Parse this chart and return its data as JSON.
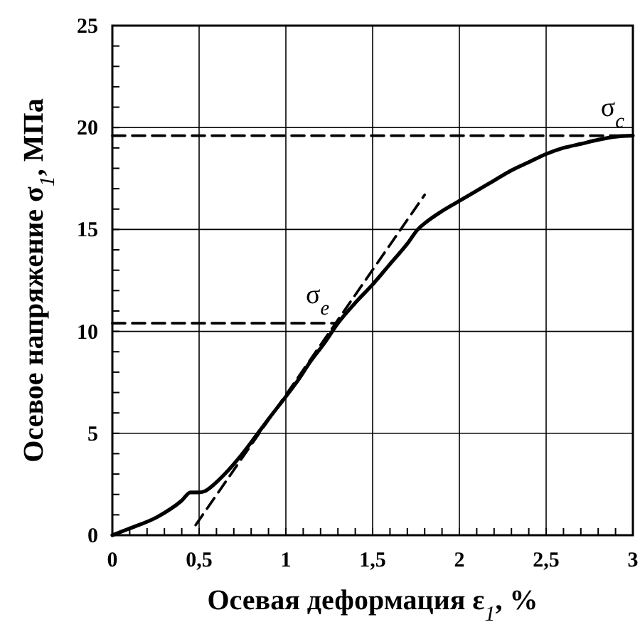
{
  "chart_data": {
    "type": "line",
    "xlabel": "Осевая деформация ε$_{1}$, %",
    "ylabel": "Осевое напряжение σ$_{1}$, МПа",
    "xlim": [
      0,
      3
    ],
    "ylim": [
      0,
      25
    ],
    "xticks": [
      0,
      {
        "value": 0.1,
        "label": null
      },
      {
        "value": 0.2,
        "label": null
      },
      {
        "value": 0.3,
        "label": null
      },
      {
        "value": 0.4,
        "label": null
      },
      {
        "value": 0.5,
        "label": "0,5"
      },
      {
        "value": 0.6,
        "label": null
      },
      {
        "value": 0.7,
        "label": null
      },
      {
        "value": 0.8,
        "label": null
      },
      {
        "value": 0.9,
        "label": null
      },
      1,
      {
        "value": 1.1,
        "label": null
      },
      {
        "value": 1.2,
        "label": null
      },
      {
        "value": 1.3,
        "label": null
      },
      {
        "value": 1.4,
        "label": null
      },
      {
        "value": 1.5,
        "label": "1,5"
      },
      {
        "value": 1.6,
        "label": null
      },
      {
        "value": 1.7,
        "label": null
      },
      {
        "value": 1.8,
        "label": null
      },
      {
        "value": 1.9,
        "label": null
      },
      2,
      {
        "value": 2.1,
        "label": null
      },
      {
        "value": 2.2,
        "label": null
      },
      {
        "value": 2.3,
        "label": null
      },
      {
        "value": 2.4,
        "label": null
      },
      {
        "value": 2.5,
        "label": "2,5"
      },
      {
        "value": 2.6,
        "label": null
      },
      {
        "value": 2.7,
        "label": null
      },
      {
        "value": 2.8,
        "label": null
      },
      {
        "value": 2.9,
        "label": null
      },
      3
    ],
    "yticks": [
      0,
      {
        "value": 1,
        "label": null
      },
      {
        "value": 2,
        "label": null
      },
      {
        "value": 3,
        "label": null
      },
      {
        "value": 4,
        "label": null
      },
      5,
      {
        "value": 6,
        "label": null
      },
      {
        "value": 7,
        "label": null
      },
      {
        "value": 8,
        "label": null
      },
      {
        "value": 9,
        "label": null
      },
      10,
      {
        "value": 11,
        "label": null
      },
      {
        "value": 12,
        "label": null
      },
      {
        "value": 13,
        "label": null
      },
      {
        "value": 14,
        "label": null
      },
      15,
      {
        "value": 16,
        "label": null
      },
      {
        "value": 17,
        "label": null
      },
      {
        "value": 18,
        "label": null
      },
      {
        "value": 19,
        "label": null
      },
      20,
      {
        "value": 21,
        "label": null
      },
      {
        "value": 22,
        "label": null
      },
      {
        "value": 23,
        "label": null
      },
      {
        "value": 24,
        "label": null
      },
      25
    ],
    "grid": true,
    "marker": "none",
    "series": [
      {
        "color": "#000000",
        "line_style": "solid",
        "x": [
          0,
          0.09,
          0.26,
          0.4,
          0.45,
          0.5,
          0.53,
          0.6,
          0.67,
          0.75,
          0.83,
          0.9,
          1.0,
          1.07,
          1.14,
          1.22,
          1.3,
          1.4,
          1.5,
          1.6,
          1.7,
          1.76,
          1.8,
          1.9,
          2.0,
          2.1,
          2.2,
          2.3,
          2.4,
          2.5,
          2.6,
          2.7,
          2.8,
          2.9,
          3.0
        ],
        "values": [
          0,
          0.3,
          0.9,
          1.7,
          2.1,
          2.1,
          2.15,
          2.6,
          3.2,
          4.0,
          4.9,
          5.7,
          6.8,
          7.6,
          8.5,
          9.4,
          10.4,
          11.4,
          12.3,
          13.3,
          14.3,
          15.0,
          15.3,
          15.9,
          16.4,
          16.9,
          17.4,
          17.9,
          18.3,
          18.7,
          19.0,
          19.2,
          19.4,
          19.55,
          19.6
        ]
      },
      {
        "color": "#000000",
        "line_style": "dashed",
        "x": [
          0,
          1.3
        ],
        "values": [
          10.4,
          10.4
        ]
      },
      {
        "color": "#000000",
        "line_style": "dashed",
        "x": [
          0,
          3.0
        ],
        "values": [
          19.6,
          19.6
        ]
      },
      {
        "color": "#000000",
        "line_style": "dashed",
        "x": [
          0.48,
          1.8
        ],
        "values": [
          0.5,
          16.7
        ]
      }
    ],
    "annotations": [
      {
        "text": "σ$_{e}$",
        "x": 1.3,
        "y": 10.4
      },
      {
        "text": "σ$_{c}$",
        "x": 3.0,
        "y": 19.6
      }
    ]
  }
}
